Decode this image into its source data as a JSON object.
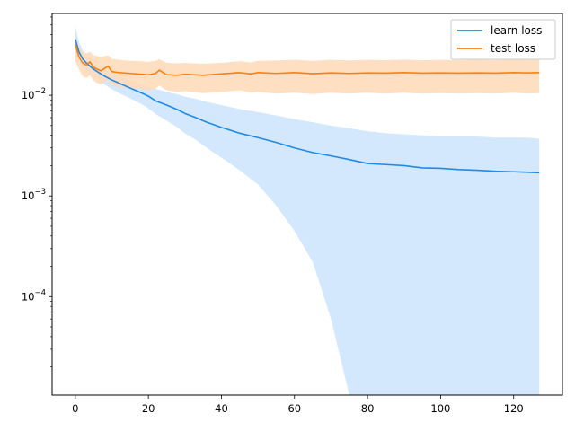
{
  "chart_data": {
    "type": "line",
    "title": "",
    "xlabel": "",
    "ylabel": "",
    "yscale": "log",
    "xlim": [
      -6.35,
      133.35
    ],
    "ylim": [
      1.05e-05,
      0.065
    ],
    "grid": false,
    "legend_position": "top-right",
    "x_ticks": [
      0,
      20,
      40,
      60,
      80,
      100,
      120
    ],
    "x_tick_labels": [
      "0",
      "20",
      "40",
      "60",
      "80",
      "100",
      "120"
    ],
    "y_ticks": [
      0.0001,
      0.001,
      0.01
    ],
    "y_tick_labels": [
      {
        "base": "10",
        "exp": "−4"
      },
      {
        "base": "10",
        "exp": "−3"
      },
      {
        "base": "10",
        "exp": "−2"
      }
    ],
    "series": [
      {
        "name": "learn loss",
        "color": "#1f8ae6",
        "band_color": "#cbe4fc",
        "x": [
          0,
          1,
          2,
          3,
          4,
          5,
          6,
          8,
          10,
          12,
          15,
          18,
          20,
          22,
          25,
          28,
          30,
          33,
          36,
          40,
          45,
          50,
          55,
          60,
          65,
          70,
          75,
          80,
          85,
          90,
          95,
          100,
          105,
          110,
          115,
          120,
          124,
          127
        ],
        "values": [
          0.036,
          0.027,
          0.023,
          0.021,
          0.0195,
          0.0182,
          0.0172,
          0.0155,
          0.0142,
          0.0132,
          0.0118,
          0.0106,
          0.0098,
          0.0088,
          0.008,
          0.0072,
          0.0066,
          0.006,
          0.0054,
          0.0048,
          0.0042,
          0.0038,
          0.0034,
          0.003,
          0.0027,
          0.0025,
          0.0023,
          0.0021,
          0.00205,
          0.002,
          0.0019,
          0.00188,
          0.00183,
          0.0018,
          0.00176,
          0.00174,
          0.00172,
          0.0017
        ],
        "upper": [
          0.048,
          0.034,
          0.028,
          0.025,
          0.023,
          0.021,
          0.02,
          0.018,
          0.0165,
          0.0155,
          0.014,
          0.0128,
          0.0122,
          0.0115,
          0.0108,
          0.0102,
          0.0097,
          0.0092,
          0.0086,
          0.008,
          0.0073,
          0.0068,
          0.0063,
          0.0058,
          0.0054,
          0.005,
          0.0047,
          0.0044,
          0.0042,
          0.0041,
          0.004,
          0.0039,
          0.0039,
          0.0039,
          0.0038,
          0.0038,
          0.0038,
          0.0037
        ],
        "lower": [
          0.026,
          0.021,
          0.019,
          0.0175,
          0.0162,
          0.015,
          0.0142,
          0.0128,
          0.0115,
          0.0105,
          0.0093,
          0.0082,
          0.0074,
          0.0065,
          0.0056,
          0.0048,
          0.0042,
          0.0036,
          0.003,
          0.0024,
          0.0018,
          0.0013,
          0.0008,
          0.00045,
          0.00022,
          6e-05,
          1.05e-05,
          1.05e-05,
          1.05e-05,
          1.05e-05,
          1.05e-05,
          1.05e-05,
          1.05e-05,
          1.05e-05,
          1.05e-05,
          1.05e-05,
          1.05e-05,
          1.05e-05
        ]
      },
      {
        "name": "test loss",
        "color": "#ff7f0e",
        "band_color": "#ffd9b6",
        "x": [
          0,
          1,
          2,
          3,
          4,
          5,
          6,
          7,
          8,
          9,
          10,
          12,
          15,
          18,
          20,
          22,
          23,
          25,
          28,
          30,
          35,
          40,
          45,
          48,
          50,
          55,
          60,
          65,
          70,
          75,
          80,
          85,
          90,
          95,
          100,
          105,
          110,
          115,
          120,
          124,
          127
        ],
        "values": [
          0.032,
          0.024,
          0.021,
          0.02,
          0.0215,
          0.019,
          0.0182,
          0.0175,
          0.0185,
          0.0195,
          0.0172,
          0.0168,
          0.0165,
          0.0162,
          0.016,
          0.0165,
          0.0178,
          0.016,
          0.0158,
          0.0162,
          0.0158,
          0.0163,
          0.0168,
          0.0163,
          0.0168,
          0.0165,
          0.0168,
          0.0164,
          0.0167,
          0.0165,
          0.0167,
          0.0166,
          0.0168,
          0.0166,
          0.0167,
          0.0166,
          0.0167,
          0.0166,
          0.0168,
          0.0167,
          0.0168
        ],
        "upper": [
          0.04,
          0.03,
          0.027,
          0.026,
          0.027,
          0.025,
          0.0245,
          0.024,
          0.0245,
          0.025,
          0.023,
          0.0225,
          0.022,
          0.0218,
          0.0215,
          0.022,
          0.0228,
          0.021,
          0.0208,
          0.021,
          0.0206,
          0.021,
          0.0218,
          0.0212,
          0.022,
          0.0222,
          0.0225,
          0.022,
          0.0225,
          0.0222,
          0.0225,
          0.0223,
          0.0226,
          0.0223,
          0.0225,
          0.0224,
          0.0226,
          0.0224,
          0.0227,
          0.0225,
          0.0226
        ],
        "lower": [
          0.022,
          0.018,
          0.0155,
          0.0148,
          0.0158,
          0.014,
          0.0132,
          0.0128,
          0.0135,
          0.0142,
          0.0125,
          0.012,
          0.0118,
          0.0115,
          0.0112,
          0.0115,
          0.0125,
          0.0112,
          0.0108,
          0.011,
          0.0105,
          0.0108,
          0.0112,
          0.0106,
          0.0108,
          0.0104,
          0.0106,
          0.0103,
          0.0106,
          0.0104,
          0.0106,
          0.0104,
          0.0106,
          0.0104,
          0.0105,
          0.0104,
          0.0105,
          0.0104,
          0.0106,
          0.0104,
          0.0105
        ]
      }
    ]
  }
}
